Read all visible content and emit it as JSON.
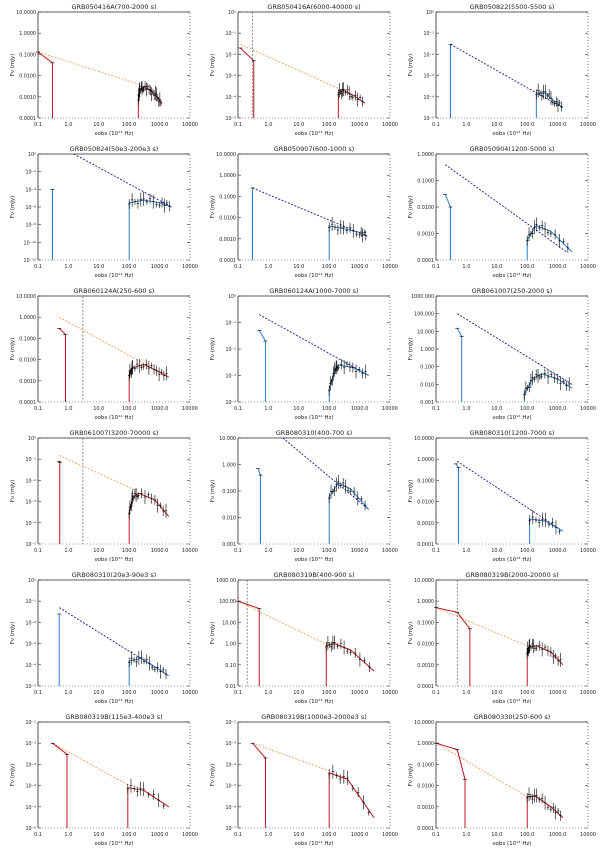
{
  "chart_data": {
    "type": "line",
    "grid_layout": "6 rows x 3 columns",
    "xscale": "log",
    "yscale": "log",
    "xlim": [
      0.1,
      10000
    ],
    "xticks": [
      "0.1",
      "1.0",
      "10.0",
      "100.0",
      "1000.0",
      "10000"
    ],
    "xlabel": "νobs (10¹⁴ Hz)",
    "ylabel": "Fν (mJy)",
    "colors": {
      "red_model": "#c0141e",
      "red_dash": "#f0a060",
      "blue_model": "#2a7fd0",
      "blue_dash": "#1a1aa0",
      "data": "#000000"
    },
    "panels": [
      {
        "title": "GRB050416A(700-2000 s)",
        "ylim": [
          0.0001,
          10
        ],
        "yticks": [
          "0.0001",
          "0.0010",
          "0.0100",
          "0.1000",
          "1.0000",
          "10.0000"
        ],
        "color": "red",
        "vline": null,
        "dashed": [
          [
            0.1,
            0.13
          ],
          [
            200,
            0.004
          ]
        ],
        "optical": [
          [
            0.1,
            0.13
          ],
          [
            0.3,
            0.04
          ]
        ],
        "xray": [
          [
            200,
            0.0008
          ],
          [
            220,
            0.002
          ],
          [
            300,
            0.003
          ],
          [
            500,
            0.002
          ],
          [
            800,
            0.001
          ],
          [
            1200,
            0.0005
          ]
        ]
      },
      {
        "title": "GRB050416A(6000-40000 s)",
        "ylim": [
          1e-05,
          1
        ],
        "yticks": [
          "10⁻⁵",
          "10⁻⁴",
          "10⁻³",
          "10⁻²",
          "10⁻¹",
          "10⁰"
        ],
        "color": "red",
        "vline": 0.3,
        "dashed": [
          [
            0.12,
            0.03
          ],
          [
            200,
            0.00025
          ]
        ],
        "optical": [
          [
            0.12,
            0.02
          ],
          [
            0.33,
            0.005
          ]
        ],
        "xray": [
          [
            200,
            0.00015
          ],
          [
            300,
            0.0002
          ],
          [
            600,
            0.00012
          ],
          [
            1500,
            5e-05
          ]
        ]
      },
      {
        "title": "GRB050822(5500-5500 s)",
        "ylim": [
          1e-05,
          1
        ],
        "yticks": [
          "10⁻⁵",
          "10⁻⁴",
          "10⁻³",
          "10⁻²",
          "10⁻¹",
          "10⁰"
        ],
        "color": "blue",
        "vline": null,
        "dashed": [
          [
            0.3,
            0.03
          ],
          [
            1500,
            3e-05
          ]
        ],
        "optical": [
          [
            0.3,
            0.03
          ]
        ],
        "xray": [
          [
            200,
            0.00015
          ],
          [
            400,
            0.00015
          ],
          [
            800,
            6e-05
          ],
          [
            1500,
            3e-05
          ]
        ]
      },
      {
        "title": "GRB050824(50e3-200e3 s)",
        "ylim": [
          1e-12,
          1
        ],
        "yticks": [
          "10⁻¹²",
          "10⁻¹⁰",
          "10⁻⁸",
          "10⁻⁶",
          "10⁻⁴",
          "10⁻²",
          "10⁰"
        ],
        "color": "blue",
        "vline": null,
        "dashed": [
          [
            1.5,
            1
          ],
          [
            2500,
            1e-06
          ]
        ],
        "optical": [
          [
            0.3,
            0.0001
          ]
        ],
        "xray": [
          [
            100,
            3e-06
          ],
          [
            300,
            6e-06
          ],
          [
            1000,
            3e-06
          ],
          [
            2500,
            1e-06
          ]
        ]
      },
      {
        "title": "GRB050907(600-1000 s)",
        "ylim": [
          0.0001,
          10
        ],
        "yticks": [
          "0.0001",
          "0.0010",
          "0.0100",
          "0.1000",
          "1.0000",
          "10.0000"
        ],
        "color": "blue",
        "vline": null,
        "dashed": [
          [
            0.3,
            0.25
          ],
          [
            1500,
            0.0015
          ]
        ],
        "optical": [
          [
            0.3,
            0.25
          ]
        ],
        "xray": [
          [
            100,
            0.004
          ],
          [
            300,
            0.003
          ],
          [
            1000,
            0.002
          ],
          [
            1800,
            0.0013
          ]
        ]
      },
      {
        "title": "GRB050904(1200-5000 s)",
        "ylim": [
          0.0001,
          1
        ],
        "yticks": [
          "0.0001",
          "0.0010",
          "0.0100",
          "0.1000",
          "1.0000"
        ],
        "color": "blue",
        "vline": null,
        "dashed": [
          [
            0.2,
            0.4
          ],
          [
            2000,
            0.0002
          ]
        ],
        "optical": [
          [
            0.2,
            0.03
          ],
          [
            0.3,
            0.01
          ]
        ],
        "xray": [
          [
            100,
            0.0006
          ],
          [
            200,
            0.002
          ],
          [
            600,
            0.0012
          ],
          [
            3000,
            0.0002
          ]
        ]
      },
      {
        "title": "GRB060124A(250-600 s)",
        "ylim": [
          0.0001,
          10
        ],
        "yticks": [
          "0.0001",
          "0.0010",
          "0.0100",
          "0.1000",
          "1.0000",
          "10.0000"
        ],
        "color": "red",
        "vline": 3,
        "dashed": [
          [
            0.5,
            1
          ],
          [
            2000,
            0.0015
          ]
        ],
        "optical": [
          [
            0.5,
            0.3
          ],
          [
            0.8,
            0.15
          ]
        ],
        "xray": [
          [
            100,
            0.002
          ],
          [
            130,
            0.004
          ],
          [
            300,
            0.006
          ],
          [
            800,
            0.003
          ],
          [
            2000,
            0.0015
          ]
        ]
      },
      {
        "title": "GRB060124A(1000-7000 s)",
        "ylim": [
          0.0001,
          1
        ],
        "yticks": [
          "10⁻⁴",
          "10⁻³",
          "10⁻²",
          "10⁻¹",
          "10⁰"
        ],
        "color": "blue",
        "vline": null,
        "dashed": [
          [
            0.5,
            0.2
          ],
          [
            2000,
            0.001
          ]
        ],
        "optical": [
          [
            0.5,
            0.05
          ],
          [
            0.8,
            0.02
          ]
        ],
        "xray": [
          [
            100,
            0.0003
          ],
          [
            150,
            0.0015
          ],
          [
            200,
            0.0025
          ],
          [
            600,
            0.002
          ],
          [
            2000,
            0.001
          ]
        ]
      },
      {
        "title": "GRB061007(250-2000 s)",
        "ylim": [
          0.001,
          1000
        ],
        "yticks": [
          "0.001",
          "0.010",
          "0.100",
          "1.000",
          "10.000",
          "100.000",
          "1000.000"
        ],
        "color": "blue",
        "vline": null,
        "dashed": [
          [
            0.5,
            100
          ],
          [
            3000,
            0.01
          ]
        ],
        "optical": [
          [
            0.5,
            15
          ],
          [
            0.7,
            5
          ]
        ],
        "xray": [
          [
            80,
            0.003
          ],
          [
            150,
            0.02
          ],
          [
            300,
            0.04
          ],
          [
            1000,
            0.02
          ],
          [
            3000,
            0.006
          ]
        ]
      },
      {
        "title": "GRB061007(3200-70000 s)",
        "ylim": [
          1e-05,
          1
        ],
        "yticks": [
          "10⁻⁵",
          "10⁻⁴",
          "10⁻³",
          "10⁻²",
          "10⁻¹",
          "10⁰"
        ],
        "color": "red",
        "vline": 3,
        "dashed": [
          [
            0.5,
            0.15
          ],
          [
            200,
            0.003
          ]
        ],
        "optical": [
          [
            0.5,
            0.08
          ],
          [
            0.52,
            0.07
          ]
        ],
        "xray": [
          [
            100,
            0.0003
          ],
          [
            130,
            0.0015
          ],
          [
            200,
            0.0025
          ],
          [
            700,
            0.0012
          ],
          [
            2000,
            0.0002
          ]
        ]
      },
      {
        "title": "GRB080310(400-700 s)",
        "ylim": [
          0.001,
          10
        ],
        "yticks": [
          "0.001",
          "0.010",
          "0.100",
          "1.000",
          "10.000"
        ],
        "color": "blue",
        "vline": null,
        "dashed": [
          [
            3,
            10
          ],
          [
            2000,
            0.02
          ]
        ],
        "optical": [
          [
            0.45,
            0.7
          ],
          [
            0.55,
            0.4
          ]
        ],
        "xray": [
          [
            100,
            0.06
          ],
          [
            200,
            0.2
          ],
          [
            500,
            0.12
          ],
          [
            2000,
            0.02
          ]
        ]
      },
      {
        "title": "GRB080310(1200-7000 s)",
        "ylim": [
          0.0001,
          10
        ],
        "yticks": [
          "0.0001",
          "0.0010",
          "0.0100",
          "0.1000",
          "1.0000",
          "10.0000"
        ],
        "color": "blue",
        "vline": null,
        "dashed": [
          [
            0.5,
            0.8
          ],
          [
            1500,
            0.0004
          ]
        ],
        "optical": [
          [
            0.45,
            0.6
          ],
          [
            0.55,
            0.4
          ]
        ],
        "xray": [
          [
            120,
            0.0015
          ],
          [
            400,
            0.0012
          ],
          [
            1500,
            0.0004
          ]
        ]
      },
      {
        "title": "GRB080310(20e3-90e3 s)",
        "ylim": [
          1e-05,
          1
        ],
        "yticks": [
          "10⁻⁵",
          "10⁻⁴",
          "10⁻³",
          "10⁻²",
          "10⁻¹",
          "10⁰"
        ],
        "color": "blue",
        "vline": null,
        "dashed": [
          [
            0.5,
            0.05
          ],
          [
            2000,
            3e-05
          ]
        ],
        "optical": [
          [
            0.5,
            0.025
          ]
        ],
        "xray": [
          [
            100,
            0.00015
          ],
          [
            250,
            0.0002
          ],
          [
            700,
            8e-05
          ],
          [
            2000,
            3e-05
          ]
        ]
      },
      {
        "title": "GRB080319B(400-900 s)",
        "ylim": [
          0.01,
          1000
        ],
        "yticks": [
          "0.01",
          "0.10",
          "1.00",
          "10.00",
          "100.00",
          "1000.00"
        ],
        "color": "red",
        "vline": 0.2,
        "dashed": [
          [
            0.1,
            100
          ],
          [
            100,
            0.8
          ]
        ],
        "optical": [
          [
            0.1,
            100
          ],
          [
            0.5,
            45
          ]
        ],
        "xray": [
          [
            80,
            0.8
          ],
          [
            150,
            1
          ],
          [
            500,
            0.5
          ],
          [
            3000,
            0.05
          ]
        ]
      },
      {
        "title": "GRB080319B(2000-20000 s)",
        "ylim": [
          0.0001,
          10
        ],
        "yticks": [
          "0.0001",
          "0.0010",
          "0.0100",
          "0.1000",
          "1.0000",
          "10.0000"
        ],
        "color": "red",
        "vline": 0.5,
        "dashed": [
          [
            0.1,
            0.5
          ],
          [
            100,
            0.008
          ]
        ],
        "optical": [
          [
            0.1,
            0.5
          ],
          [
            0.5,
            0.3
          ],
          [
            1.3,
            0.05
          ]
        ],
        "xray": [
          [
            100,
            0.004
          ],
          [
            120,
            0.007
          ],
          [
            200,
            0.008
          ],
          [
            600,
            0.004
          ],
          [
            1500,
            0.001
          ]
        ]
      },
      {
        "title": "GRB080319B(115e3-400e3 s)",
        "ylim": [
          1e-06,
          0.1
        ],
        "yticks": [
          "10⁻⁶",
          "10⁻⁵",
          "10⁻⁴",
          "10⁻³",
          "10⁻²",
          "10⁻¹"
        ],
        "color": "red",
        "vline": null,
        "dashed": [
          [
            0.3,
            0.01
          ],
          [
            100,
            0.0001
          ]
        ],
        "optical": [
          [
            0.3,
            0.01
          ],
          [
            0.9,
            0.003
          ]
        ],
        "xray": [
          [
            90,
            8e-05
          ],
          [
            300,
            6e-05
          ],
          [
            2000,
            1e-05
          ]
        ]
      },
      {
        "title": "GRB080319B(1000e3-2000e3 s)",
        "ylim": [
          1e-07,
          0.01
        ],
        "yticks": [
          "10⁻⁷",
          "10⁻⁶",
          "10⁻⁵",
          "10⁻⁴",
          "10⁻³",
          "10⁻²"
        ],
        "color": "red",
        "vline": null,
        "dashed": [
          [
            0.3,
            0.001
          ],
          [
            100,
            5e-05
          ]
        ],
        "optical": [
          [
            0.3,
            0.001
          ],
          [
            0.8,
            0.0002
          ]
        ],
        "xray": [
          [
            100,
            4e-05
          ],
          [
            400,
            2e-05
          ],
          [
            3000,
            3e-07
          ]
        ]
      },
      {
        "title": "GRB080330(250-600 s)",
        "ylim": [
          0.0001,
          10
        ],
        "yticks": [
          "0.0001",
          "0.0010",
          "0.0100",
          "0.1000",
          "1.0000",
          "10.0000"
        ],
        "color": "red",
        "vline": null,
        "dashed": [
          [
            0.1,
            1
          ],
          [
            100,
            0.003
          ]
        ],
        "optical": [
          [
            0.1,
            1
          ],
          [
            0.5,
            0.5
          ],
          [
            0.9,
            0.02
          ]
        ],
        "xray": [
          [
            100,
            0.003
          ],
          [
            200,
            0.003
          ],
          [
            600,
            0.001
          ],
          [
            1500,
            0.0003
          ]
        ]
      }
    ]
  }
}
